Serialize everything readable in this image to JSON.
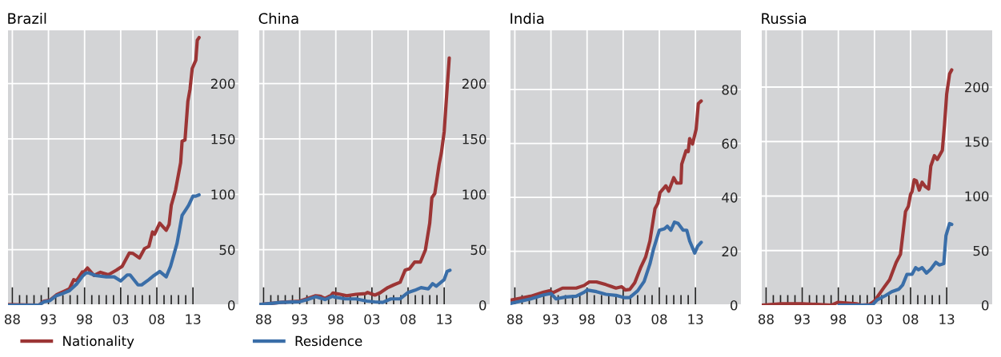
{
  "chart_data": [
    {
      "type": "line",
      "title": "Brazil",
      "xlim": [
        1987.4,
        2019.3
      ],
      "ylim": [
        0,
        248
      ],
      "xticks": [
        {
          "value": 1988,
          "label": "88"
        },
        {
          "value": 1989,
          "label": null
        },
        {
          "value": 1990,
          "label": null
        },
        {
          "value": 1991,
          "label": null
        },
        {
          "value": 1992,
          "label": null
        },
        {
          "value": 1993,
          "label": "93"
        },
        {
          "value": 1994,
          "label": null
        },
        {
          "value": 1995,
          "label": null
        },
        {
          "value": 1996,
          "label": null
        },
        {
          "value": 1997,
          "label": null
        },
        {
          "value": 1998,
          "label": "98"
        },
        {
          "value": 1999,
          "label": null
        },
        {
          "value": 2000,
          "label": null
        },
        {
          "value": 2001,
          "label": null
        },
        {
          "value": 2002,
          "label": null
        },
        {
          "value": 2003,
          "label": "03"
        },
        {
          "value": 2004,
          "label": null
        },
        {
          "value": 2005,
          "label": null
        },
        {
          "value": 2006,
          "label": null
        },
        {
          "value": 2007,
          "label": null
        },
        {
          "value": 2008,
          "label": "08"
        },
        {
          "value": 2009,
          "label": null
        },
        {
          "value": 2010,
          "label": null
        },
        {
          "value": 2011,
          "label": null
        },
        {
          "value": 2012,
          "label": null
        },
        {
          "value": 2013,
          "label": "13"
        }
      ],
      "yticks": [
        0,
        50,
        100,
        150,
        200
      ],
      "grid": true,
      "legend": "bottom",
      "series": [
        {
          "name": "Nationality",
          "color": "#9c3535",
          "x": [
            1987.45,
            1991.7,
            1992.4,
            1993.2,
            1994.1,
            1995.0,
            1995.9,
            1996.5,
            1996.9,
            1997.7,
            1997.9,
            1998.4,
            1999.3,
            2000.2,
            2001.3,
            2002.4,
            2003.2,
            2004.2,
            2004.7,
            2005.6,
            2006.3,
            2006.9,
            2007.4,
            2007.7,
            2008.4,
            2009.3,
            2009.7,
            2010.0,
            2010.6,
            2011.3,
            2011.5,
            2011.9,
            2012.3,
            2012.6,
            2012.9,
            2013.4,
            2013.6,
            2013.85
          ],
          "values": [
            0.5,
            0,
            3.6,
            4.4,
            9.2,
            12,
            14.6,
            23,
            22,
            30,
            29.6,
            33.5,
            26.7,
            29.6,
            27.4,
            31.5,
            35,
            47,
            46.6,
            42.5,
            51,
            53,
            66,
            64,
            74,
            67.5,
            72.8,
            90,
            104,
            128.6,
            148,
            149,
            184,
            195,
            213.6,
            221,
            239,
            241.5
          ]
        },
        {
          "name": "Residence",
          "color": "#3a6ea8",
          "x": [
            1987.45,
            1991.7,
            1992.4,
            1993.2,
            1994.1,
            1995.0,
            1995.9,
            1996.9,
            1997.7,
            1998.2,
            1998.6,
            1999.5,
            2001.0,
            2002.1,
            2003.0,
            2003.9,
            2004.3,
            2005.4,
            2005.9,
            2006.9,
            2007.6,
            2008.4,
            2009.3,
            2009.9,
            2010.8,
            2011.5,
            2012.1,
            2012.4,
            2013.0,
            2013.4,
            2013.85
          ],
          "values": [
            0,
            0,
            3,
            4,
            8.5,
            10.5,
            13,
            19,
            26,
            29,
            29,
            26.7,
            25.5,
            25.5,
            21.8,
            27.2,
            27.2,
            18.2,
            18.2,
            23,
            26.7,
            30.3,
            25.5,
            35,
            55.8,
            81,
            87,
            90,
            98.3,
            98.3,
            99.5
          ]
        }
      ]
    },
    {
      "type": "line",
      "title": "China",
      "xlim": [
        1987.4,
        2019.3
      ],
      "ylim": [
        0,
        248
      ],
      "xticks": [
        {
          "value": 1988,
          "label": "88"
        },
        {
          "value": 1989,
          "label": null
        },
        {
          "value": 1990,
          "label": null
        },
        {
          "value": 1991,
          "label": null
        },
        {
          "value": 1992,
          "label": null
        },
        {
          "value": 1993,
          "label": "93"
        },
        {
          "value": 1994,
          "label": null
        },
        {
          "value": 1995,
          "label": null
        },
        {
          "value": 1996,
          "label": null
        },
        {
          "value": 1997,
          "label": null
        },
        {
          "value": 1998,
          "label": "98"
        },
        {
          "value": 1999,
          "label": null
        },
        {
          "value": 2000,
          "label": null
        },
        {
          "value": 2001,
          "label": null
        },
        {
          "value": 2002,
          "label": null
        },
        {
          "value": 2003,
          "label": "03"
        },
        {
          "value": 2004,
          "label": null
        },
        {
          "value": 2005,
          "label": null
        },
        {
          "value": 2006,
          "label": null
        },
        {
          "value": 2007,
          "label": null
        },
        {
          "value": 2008,
          "label": "08"
        },
        {
          "value": 2009,
          "label": null
        },
        {
          "value": 2010,
          "label": null
        },
        {
          "value": 2011,
          "label": null
        },
        {
          "value": 2012,
          "label": null
        },
        {
          "value": 2013,
          "label": "13"
        }
      ],
      "yticks": [
        0,
        50,
        100,
        150,
        200
      ],
      "grid": true,
      "series": [
        {
          "name": "Nationality",
          "color": "#9c3535",
          "x": [
            1987.4,
            1990.4,
            1993.0,
            1994.1,
            1995.2,
            1995.8,
            1996.5,
            1997.3,
            1997.6,
            1998.6,
            1999.5,
            2000.8,
            2002.1,
            2002.4,
            2003.4,
            2004.1,
            2005.2,
            2006.0,
            2006.9,
            2007.6,
            2008.2,
            2008.9,
            2009.7,
            2010.4,
            2011.0,
            2011.3,
            2011.7,
            2012.3,
            2012.6,
            2013.0,
            2013.4,
            2013.7
          ],
          "values": [
            0.5,
            2.4,
            3.6,
            6,
            8.5,
            8,
            6,
            8.5,
            11,
            9.7,
            8.5,
            9.7,
            10.4,
            11.4,
            9,
            11,
            15.8,
            18.2,
            20.6,
            31.6,
            32.8,
            38.8,
            38.8,
            49.8,
            74,
            97,
            100.7,
            127,
            137,
            156.5,
            195,
            223
          ]
        },
        {
          "name": "Residence",
          "color": "#3a6ea8",
          "x": [
            1987.4,
            1990.4,
            1993.0,
            1994.1,
            1995.2,
            1996.5,
            1997.6,
            1997.8,
            1999.3,
            2000.8,
            2002.3,
            2003.4,
            2004.5,
            2005.6,
            2006.9,
            2008.0,
            2008.9,
            2009.8,
            2010.8,
            2011.4,
            2011.9,
            2013.0,
            2013.4,
            2013.8
          ],
          "values": [
            0.5,
            2.4,
            3,
            5,
            7.5,
            5,
            8,
            7.3,
            5.6,
            5.6,
            3.6,
            2.9,
            2.4,
            5.6,
            5.6,
            11.4,
            13.3,
            15.8,
            14.6,
            19.4,
            17,
            23,
            30.3,
            31.5
          ]
        }
      ]
    },
    {
      "type": "line",
      "title": "India",
      "xlim": [
        1987.4,
        2019.3
      ],
      "ylim": [
        0,
        102
      ],
      "xticks": [
        {
          "value": 1988,
          "label": "88"
        },
        {
          "value": 1989,
          "label": null
        },
        {
          "value": 1990,
          "label": null
        },
        {
          "value": 1991,
          "label": null
        },
        {
          "value": 1992,
          "label": null
        },
        {
          "value": 1993,
          "label": "93"
        },
        {
          "value": 1994,
          "label": null
        },
        {
          "value": 1995,
          "label": null
        },
        {
          "value": 1996,
          "label": null
        },
        {
          "value": 1997,
          "label": null
        },
        {
          "value": 1998,
          "label": "98"
        },
        {
          "value": 1999,
          "label": null
        },
        {
          "value": 2000,
          "label": null
        },
        {
          "value": 2001,
          "label": null
        },
        {
          "value": 2002,
          "label": null
        },
        {
          "value": 2003,
          "label": "03"
        },
        {
          "value": 2004,
          "label": null
        },
        {
          "value": 2005,
          "label": null
        },
        {
          "value": 2006,
          "label": null
        },
        {
          "value": 2007,
          "label": null
        },
        {
          "value": 2008,
          "label": "08"
        },
        {
          "value": 2009,
          "label": null
        },
        {
          "value": 2010,
          "label": null
        },
        {
          "value": 2011,
          "label": null
        },
        {
          "value": 2012,
          "label": null
        },
        {
          "value": 2013,
          "label": "13"
        }
      ],
      "yticks": [
        0,
        20,
        40,
        60,
        80
      ],
      "grid": true,
      "series": [
        {
          "name": "Nationality",
          "color": "#9c3535",
          "x": [
            1987.4,
            1990.2,
            1992.0,
            1992.8,
            1993.3,
            1994.6,
            1996.5,
            1997.6,
            1998.3,
            1999.3,
            2000.6,
            2002.0,
            2002.8,
            2003.3,
            2003.9,
            2004.6,
            2005.4,
            2006.1,
            2006.7,
            2007.4,
            2007.8,
            2008.1,
            2008.9,
            2009.3,
            2010.0,
            2010.4,
            2011.0,
            2011.1,
            2011.7,
            2012.0,
            2012.2,
            2012.6,
            2013.1,
            2013.4,
            2013.8
          ],
          "values": [
            1.8,
            3.3,
            4.8,
            5.3,
            4.6,
            6.3,
            6.3,
            7.3,
            8.6,
            8.6,
            7.6,
            6.3,
            6.8,
            5.6,
            5.8,
            8.3,
            13.8,
            17.8,
            23.8,
            35.8,
            37.8,
            41.8,
            44.3,
            42.3,
            47.3,
            45.3,
            45.3,
            52.3,
            57.3,
            57,
            61.8,
            59.8,
            65.3,
            74.8,
            75.8
          ]
        },
        {
          "name": "Residence",
          "color": "#3a6ea8",
          "x": [
            1987.4,
            1990.2,
            1992.0,
            1993.0,
            1993.7,
            1995.0,
            1996.5,
            1997.6,
            1998.0,
            1999.3,
            2000.6,
            2002.0,
            2003.1,
            2003.9,
            2005.0,
            2005.9,
            2006.7,
            2007.2,
            2008.0,
            2008.7,
            2009.1,
            2009.6,
            2010.1,
            2010.6,
            2011.3,
            2011.8,
            2012.2,
            2012.9,
            2013.3,
            2013.8
          ],
          "values": [
            0.6,
            2.3,
            3.8,
            4.3,
            2.3,
            3,
            3.3,
            4.8,
            5.6,
            5,
            4,
            3.6,
            2.8,
            2.8,
            5.3,
            8.8,
            15.3,
            20.8,
            27.8,
            28.3,
            29.3,
            27.8,
            30.8,
            30.3,
            27.8,
            27.8,
            23.8,
            19.3,
            21.8,
            23.3
          ]
        }
      ]
    },
    {
      "type": "line",
      "title": "Russia",
      "xlim": [
        1987.4,
        2019.3
      ],
      "ylim": [
        0,
        252
      ],
      "xticks": [
        {
          "value": 1988,
          "label": "88"
        },
        {
          "value": 1989,
          "label": null
        },
        {
          "value": 1990,
          "label": null
        },
        {
          "value": 1991,
          "label": null
        },
        {
          "value": 1992,
          "label": null
        },
        {
          "value": 1993,
          "label": "93"
        },
        {
          "value": 1994,
          "label": null
        },
        {
          "value": 1995,
          "label": null
        },
        {
          "value": 1996,
          "label": null
        },
        {
          "value": 1997,
          "label": null
        },
        {
          "value": 1998,
          "label": "98"
        },
        {
          "value": 1999,
          "label": null
        },
        {
          "value": 2000,
          "label": null
        },
        {
          "value": 2001,
          "label": null
        },
        {
          "value": 2002,
          "label": null
        },
        {
          "value": 2003,
          "label": "03"
        },
        {
          "value": 2004,
          "label": null
        },
        {
          "value": 2005,
          "label": null
        },
        {
          "value": 2006,
          "label": null
        },
        {
          "value": 2007,
          "label": null
        },
        {
          "value": 2008,
          "label": "08"
        },
        {
          "value": 2009,
          "label": null
        },
        {
          "value": 2010,
          "label": null
        },
        {
          "value": 2011,
          "label": null
        },
        {
          "value": 2012,
          "label": null
        },
        {
          "value": 2013,
          "label": "13"
        }
      ],
      "yticks": [
        0,
        50,
        100,
        150,
        200
      ],
      "grid": true,
      "series": [
        {
          "name": "Nationality",
          "color": "#9c3535",
          "x": [
            1987.4,
            1990.1,
            1993.0,
            1997.1,
            1997.9,
            2000.5,
            2001.2,
            2002.3,
            2003.0,
            2004.3,
            2005.1,
            2006.0,
            2006.6,
            2007.3,
            2007.7,
            2008.0,
            2008.2,
            2008.5,
            2008.8,
            2009.2,
            2009.6,
            2010.0,
            2010.5,
            2010.8,
            2011.3,
            2011.7,
            2012.4,
            2012.7,
            2013.0,
            2013.4,
            2013.7
          ],
          "values": [
            0,
            1.2,
            1.2,
            0,
            2.5,
            1.2,
            0,
            0.5,
            3.7,
            16,
            23.3,
            39,
            46.6,
            85.8,
            90.7,
            101.7,
            104,
            115,
            114,
            105.4,
            112.7,
            109,
            106.6,
            127.5,
            137,
            133.6,
            142,
            165.4,
            193.6,
            212,
            215.7
          ]
        },
        {
          "name": "Residence",
          "color": "#3a6ea8",
          "x": [
            1998.1,
            2002.7,
            2003.4,
            2004.5,
            2005.4,
            2006.4,
            2006.9,
            2007.5,
            2008.2,
            2008.7,
            2009.1,
            2009.6,
            2010.2,
            2010.8,
            2011.5,
            2012.0,
            2012.6,
            2012.9,
            2013.4,
            2013.7
          ],
          "values": [
            0,
            0,
            4.9,
            8.6,
            12.3,
            14.7,
            18.4,
            28.2,
            28.2,
            34.3,
            32.4,
            34.3,
            29.4,
            33,
            39.2,
            36.8,
            38,
            63.7,
            74.8,
            74
          ]
        }
      ]
    }
  ]
}
